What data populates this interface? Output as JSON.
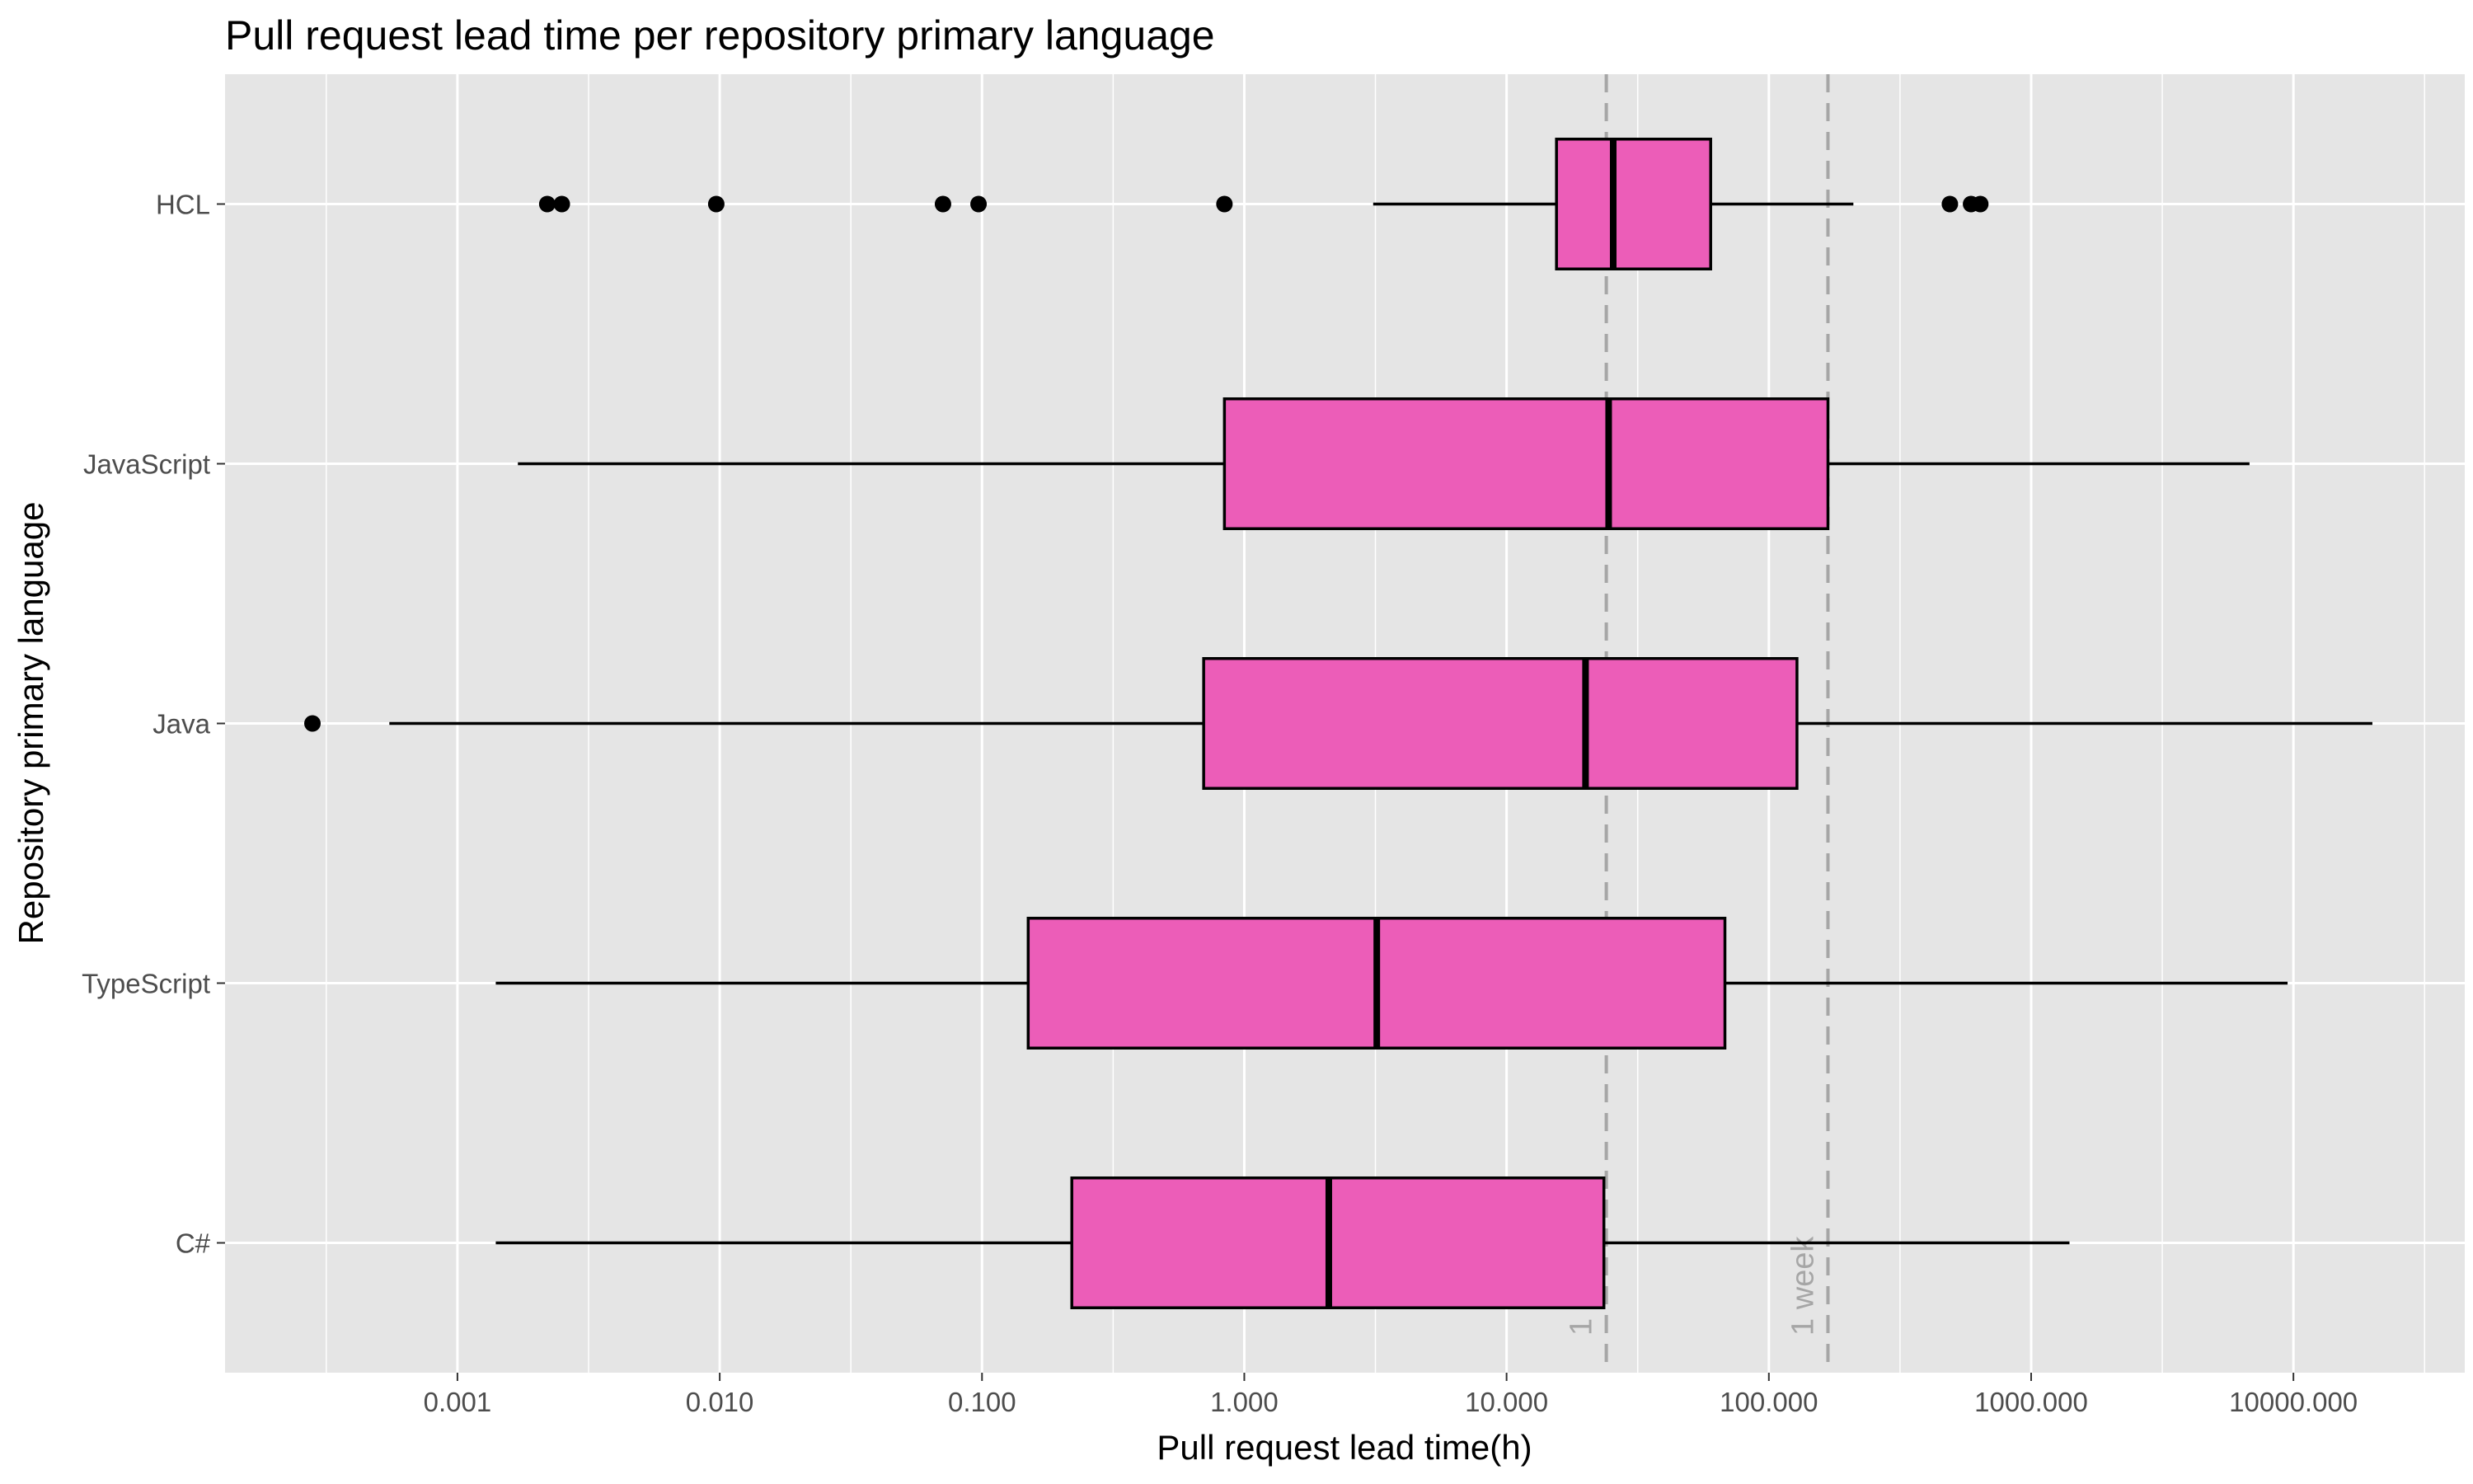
{
  "chart_data": {
    "type": "boxplot",
    "orientation": "horizontal",
    "title": "Pull request lead time per repository primary language",
    "xlabel": "Pull request lead time(h)",
    "ylabel": "Repository primary language",
    "x_scale": "log10",
    "xlim": [
      0.00013,
      45000
    ],
    "x_ticks": [
      0.001,
      0.01,
      0.1,
      1,
      10,
      100,
      1000,
      10000
    ],
    "x_tick_labels": [
      "0.001",
      "0.010",
      "0.100",
      "1.000",
      "10.000",
      "100.000",
      "1000.000",
      "10000.000"
    ],
    "categories": [
      "C#",
      "TypeScript",
      "Java",
      "JavaScript",
      "HCL"
    ],
    "boxes": [
      {
        "category": "C#",
        "whisker_low": 0.0014,
        "q1": 0.22,
        "median": 2.1,
        "q3": 23.5,
        "whisker_high": 1400,
        "outliers": []
      },
      {
        "category": "TypeScript",
        "whisker_low": 0.0014,
        "q1": 0.15,
        "median": 3.2,
        "q3": 68,
        "whisker_high": 9500,
        "outliers": []
      },
      {
        "category": "Java",
        "whisker_low": 0.00055,
        "q1": 0.7,
        "median": 20,
        "q3": 128,
        "whisker_high": 20000,
        "outliers": [
          0.00028
        ]
      },
      {
        "category": "JavaScript",
        "whisker_low": 0.0017,
        "q1": 0.84,
        "median": 24.5,
        "q3": 168,
        "whisker_high": 6800,
        "outliers": []
      },
      {
        "category": "HCL",
        "whisker_low": 3.1,
        "q1": 15.5,
        "median": 25.5,
        "q3": 60,
        "whisker_high": 210,
        "outliers": [
          0.0022,
          0.0025,
          0.0097,
          0.071,
          0.097,
          0.84,
          490,
          590,
          640
        ]
      }
    ],
    "reference_lines": [
      {
        "x": 24,
        "label": "1 day"
      },
      {
        "x": 168,
        "label": "1 week"
      }
    ],
    "grid": true,
    "colors": {
      "box_fill": "#ec5db8",
      "panel_background": "#e5e5e5",
      "grid": "#ffffff",
      "reference_line": "#a6a6a6"
    }
  }
}
